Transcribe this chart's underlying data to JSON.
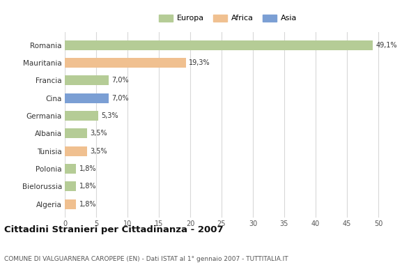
{
  "categories": [
    "Romania",
    "Mauritania",
    "Francia",
    "Cina",
    "Germania",
    "Albania",
    "Tunisia",
    "Polonia",
    "Bielorussia",
    "Algeria"
  ],
  "values": [
    49.1,
    19.3,
    7.0,
    7.0,
    5.3,
    3.5,
    3.5,
    1.8,
    1.8,
    1.8
  ],
  "labels": [
    "49,1%",
    "19,3%",
    "7,0%",
    "7,0%",
    "5,3%",
    "3,5%",
    "3,5%",
    "1,8%",
    "1,8%",
    "1,8%"
  ],
  "bar_colors": [
    "#b5cc96",
    "#f0c090",
    "#b5cc96",
    "#7b9fd4",
    "#b5cc96",
    "#b5cc96",
    "#f0c090",
    "#b5cc96",
    "#b5cc96",
    "#f0c090"
  ],
  "legend_labels": [
    "Europa",
    "Africa",
    "Asia"
  ],
  "legend_colors": [
    "#b5cc96",
    "#f0c090",
    "#7b9fd4"
  ],
  "title": "Cittadini Stranieri per Cittadinanza - 2007",
  "subtitle": "COMUNE DI VALGUARNERA CAROPEPE (EN) - Dati ISTAT al 1° gennaio 2007 - TUTTITALIA.IT",
  "xlim": [
    0,
    52
  ],
  "xticks": [
    0,
    5,
    10,
    15,
    20,
    25,
    30,
    35,
    40,
    45,
    50
  ],
  "background_color": "#ffffff",
  "grid_color": "#d8d8d8",
  "bar_height": 0.55
}
